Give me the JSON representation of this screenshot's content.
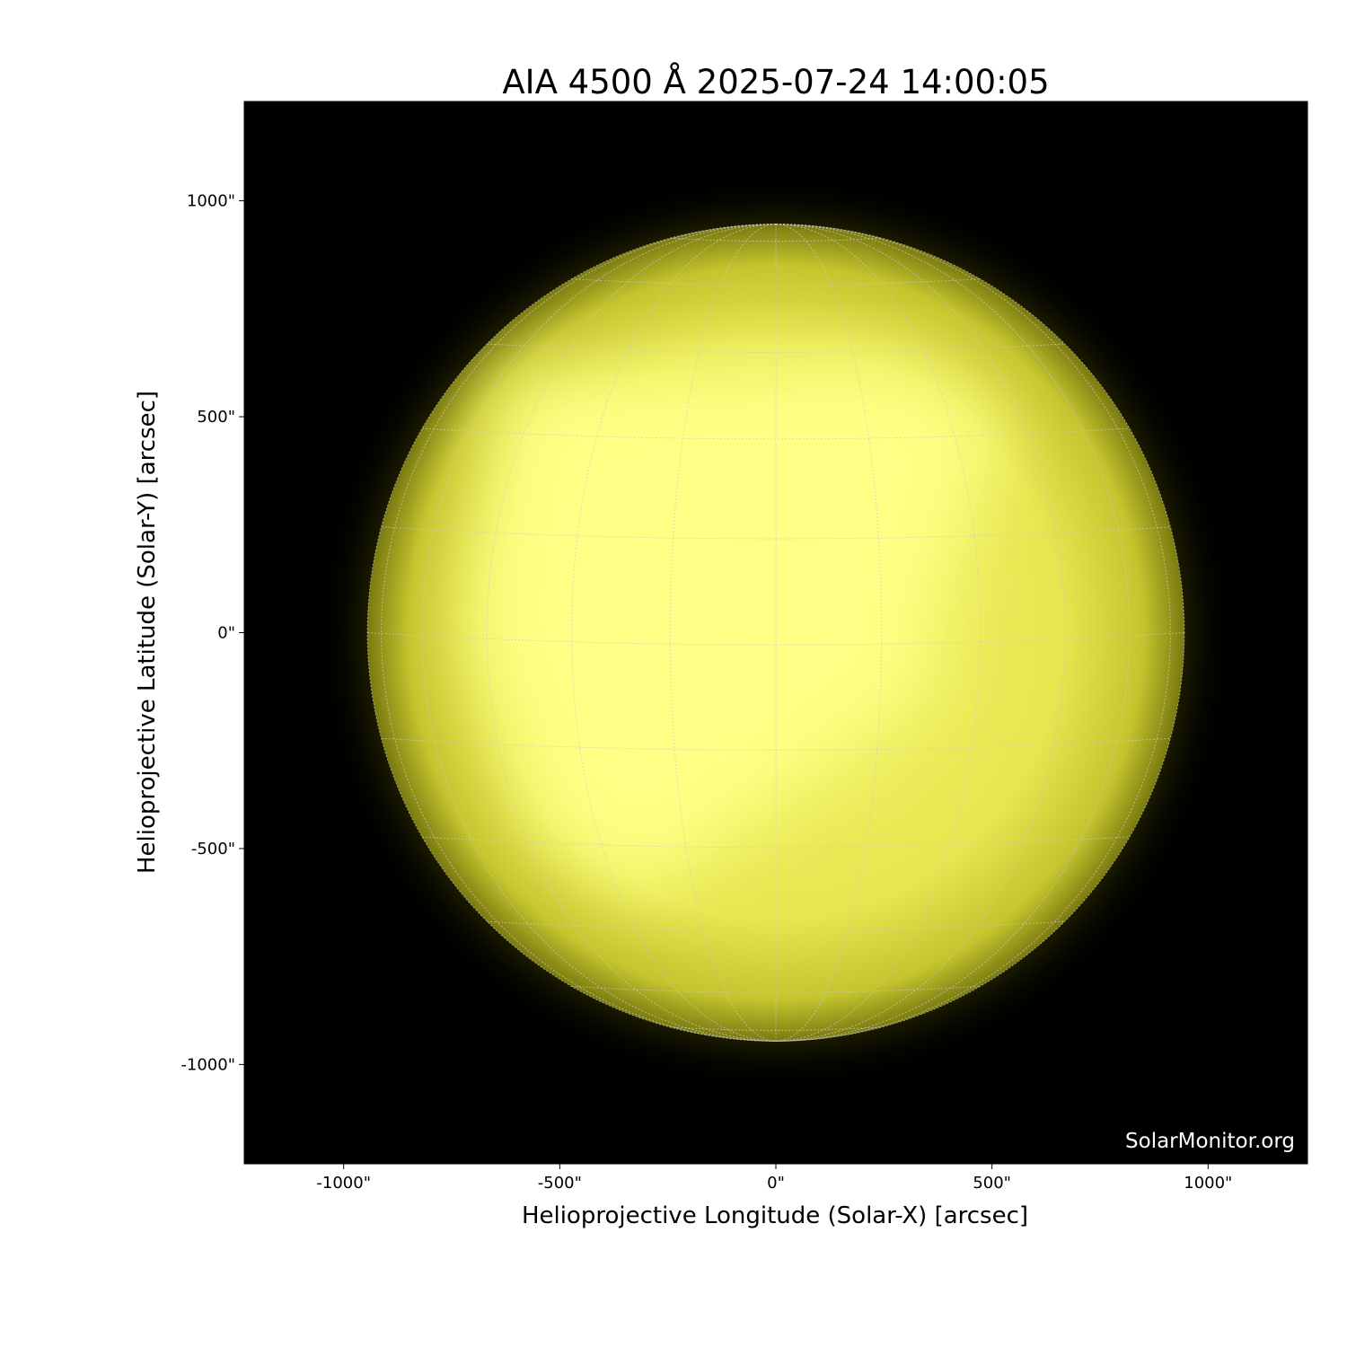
{
  "chart_data": {
    "type": "image",
    "title": "AIA 4500 Å 2025-07-24 14:00:05",
    "xlabel": "Helioprojective Longitude (Solar-X) [arcsec]",
    "ylabel": "Helioprojective Latitude (Solar-Y) [arcsec]",
    "xlim": [
      -1230,
      1230
    ],
    "ylim": [
      -1230,
      1230
    ],
    "xticks": [
      -1000,
      -500,
      0,
      500,
      1000
    ],
    "yticks": [
      -1000,
      -500,
      0,
      500,
      1000
    ],
    "xtick_labels": [
      "-1000\"",
      "-500\"",
      "0\"",
      "500\"",
      "1000\""
    ],
    "ytick_labels": [
      "-1000\"",
      "-500\"",
      "0\"",
      "500\"",
      "1000\""
    ],
    "solar_radius_arcsec": 945,
    "grid_spacing_deg": 15,
    "grid": true,
    "colormap": "yellow",
    "colors": {
      "background": "#000000",
      "disk_bright": "#ffff80",
      "disk_limb": "#8a8a10",
      "grid": "#cccccc"
    },
    "watermark": "SolarMonitor.org"
  }
}
